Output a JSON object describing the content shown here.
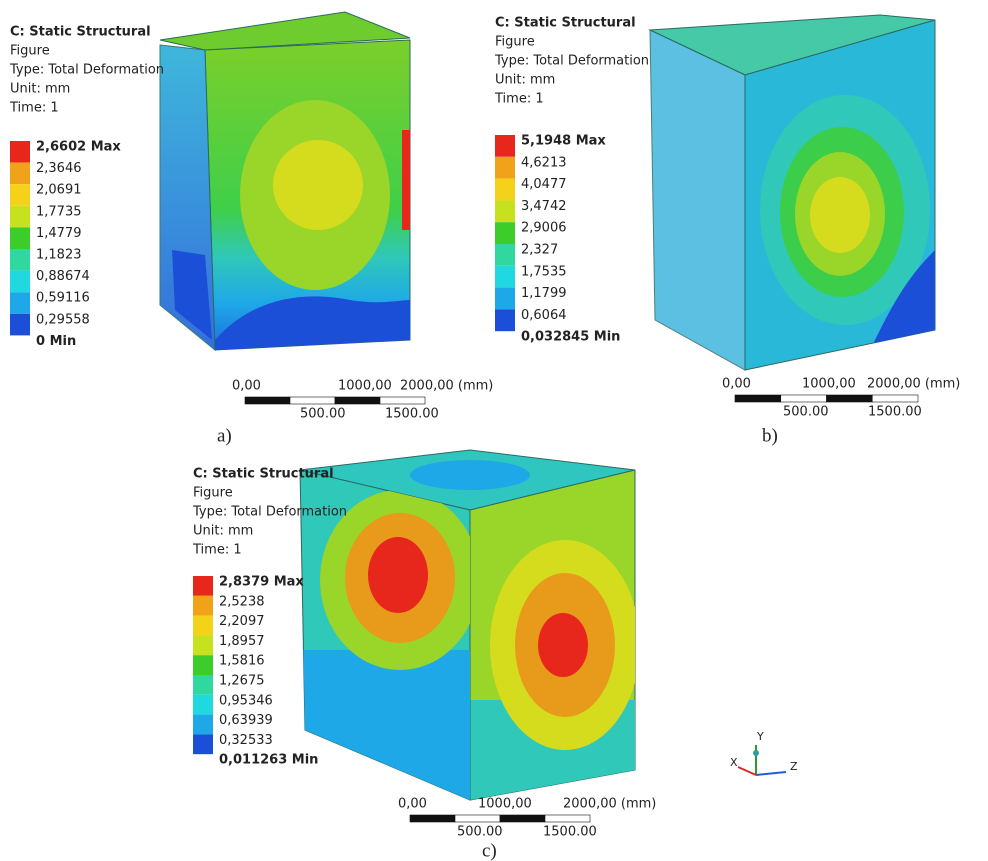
{
  "panels": [
    {
      "header": [
        "C: Static Structural",
        "Figure",
        "Type: Total Deformation",
        "Unit: mm",
        "Time: 1"
      ],
      "legend": [
        "2,6602 Max",
        "2,3646",
        "2,0691",
        "1,7735",
        "1,4779",
        "1,1823",
        "0,88674",
        "0,59116",
        "0,29558",
        "0 Min"
      ],
      "scale_top": [
        "0,00",
        "1000,00",
        "2000,00 (mm)"
      ],
      "scale_bottom": [
        "500.00",
        "1500.00"
      ],
      "caption": "a)"
    },
    {
      "header": [
        "C: Static Structural",
        "Figure",
        "Type: Total Deformation",
        "Unit: mm",
        "Time: 1"
      ],
      "legend": [
        "5,1948 Max",
        "4,6213",
        "4,0477",
        "3,4742",
        "2,9006",
        "2,327",
        "1,7535",
        "1,1799",
        "0,6064",
        "0,032845 Min"
      ],
      "scale_top": [
        "0,00",
        "1000,00",
        "2000,00 (mm)"
      ],
      "scale_bottom": [
        "500.00",
        "1500.00"
      ],
      "caption": "b)"
    },
    {
      "header": [
        "C: Static Structural",
        "Figure",
        "Type: Total Deformation",
        "Unit: mm",
        "Time: 1"
      ],
      "legend": [
        "2,8379 Max",
        "2,5238",
        "2,2097",
        "1,8957",
        "1,5816",
        "1,2675",
        "0,95346",
        "0,63939",
        "0,32533",
        "0,011263 Min"
      ],
      "scale_top": [
        "0,00",
        "1000,00",
        "2000,00 (mm)"
      ],
      "scale_bottom": [
        "500.00",
        "1500.00"
      ],
      "caption": "c)"
    }
  ],
  "triad": {
    "y": "Y",
    "x": "X",
    "z": "Z"
  }
}
